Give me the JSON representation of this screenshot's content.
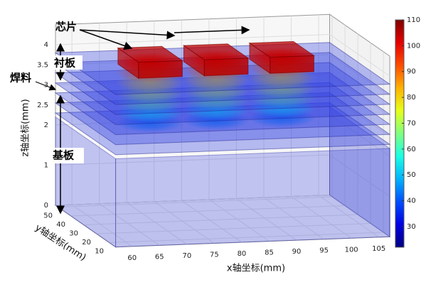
{
  "chart_data": {
    "type": "volume-slice",
    "xlabel": "x轴坐标(mm)",
    "ylabel": "y轴坐标(mm)",
    "zlabel": "z轴坐标(mm)",
    "xlim": [
      57,
      107
    ],
    "ylim": [
      5,
      52
    ],
    "zlim": [
      0,
      4.5
    ],
    "xticks": [
      60,
      65,
      70,
      75,
      80,
      85,
      90,
      95,
      100,
      105
    ],
    "yticks": [
      10,
      20,
      30,
      40,
      50
    ],
    "zticks": [
      0,
      1,
      2,
      2.5,
      3,
      3.5,
      4
    ],
    "clim": [
      22,
      110
    ],
    "cticks": [
      30,
      40,
      50,
      60,
      70,
      80,
      90,
      100,
      110
    ],
    "substrate_top": 2.2,
    "planes": [
      {
        "z": 2.3,
        "peak": 45
      },
      {
        "z": 2.55,
        "peak": 55
      },
      {
        "z": 2.8,
        "peak": 65
      },
      {
        "z": 3.05,
        "peak": 72
      },
      {
        "z": 3.3,
        "peak": 80
      },
      {
        "z": 3.55,
        "peak": 90
      },
      {
        "z": 3.8,
        "peak": 100
      }
    ],
    "chips": [
      {
        "x": [
          67,
          75
        ],
        "y": [
          30,
          46
        ],
        "z": [
          3.6,
          4.0
        ],
        "temp": 105
      },
      {
        "x": [
          79,
          87
        ],
        "y": [
          30,
          46
        ],
        "z": [
          3.6,
          4.0
        ],
        "temp": 105
      },
      {
        "x": [
          91,
          99
        ],
        "y": [
          30,
          46
        ],
        "z": [
          3.6,
          4.0
        ],
        "temp": 105
      }
    ],
    "annotations": {
      "chip": "芯片",
      "liner": "衬板",
      "solder": "焊料",
      "base": "基板"
    }
  }
}
